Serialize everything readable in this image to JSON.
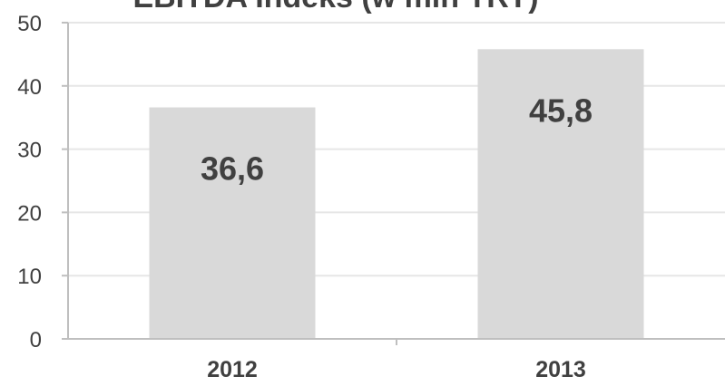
{
  "chart_data": {
    "type": "bar",
    "title": "EBITDA Indeks (w mln TRY)",
    "categories": [
      "2012",
      "2013"
    ],
    "values": [
      36.6,
      45.8
    ],
    "value_labels": [
      "36,6",
      "45,8"
    ],
    "y_ticks": [
      "0",
      "10",
      "20",
      "30",
      "40",
      "50"
    ],
    "ylim": [
      0,
      50
    ],
    "grid": true,
    "legend": "none",
    "colors": {
      "bar": "#d9d9d9",
      "grid": "#e6e6e6",
      "axis": "#bfbfbf",
      "text": "#404040"
    }
  }
}
